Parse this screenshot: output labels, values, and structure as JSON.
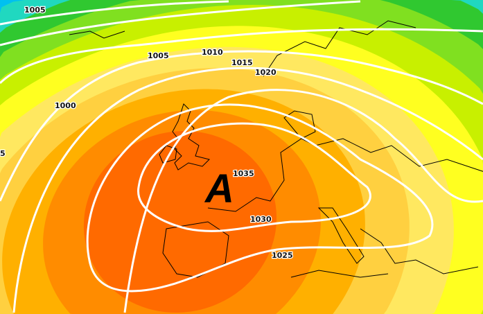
{
  "map": {
    "type": "surface pressure analysis",
    "high_pressure_label": "A",
    "isobar_labels": [
      "1005",
      "1005",
      "1010",
      "1015",
      "1020",
      "1000",
      "1035",
      "1030",
      "1025",
      "5"
    ],
    "colors": {
      "isobar": "#ffffff",
      "coastline": "#000000",
      "scale": [
        "#5a1f4f",
        "#1b1f6e",
        "#0010b0",
        "#0030e0",
        "#0060ff",
        "#0090ff",
        "#00c0f0",
        "#20d8c0",
        "#30c830",
        "#80e020",
        "#c8f000",
        "#ffff20",
        "#ffe860",
        "#ffd040",
        "#ffb000",
        "#ff8c00",
        "#ff6a00"
      ]
    }
  }
}
